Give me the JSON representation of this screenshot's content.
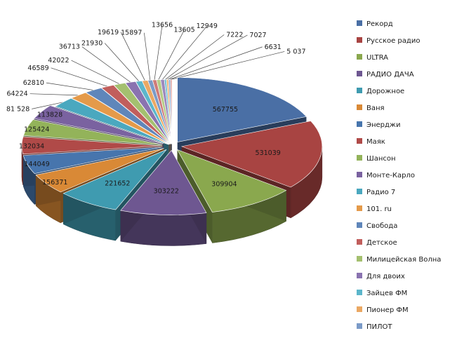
{
  "chart_data": {
    "type": "pie",
    "style": "3d-exploded",
    "legend_position": "right",
    "title": "",
    "slices": [
      {
        "name": "Рекорд",
        "value": 567755,
        "label": "567755",
        "color": "#4a6fa5"
      },
      {
        "name": "Русское радио",
        "value": 531039,
        "label": "531039",
        "color": "#a84442"
      },
      {
        "name": "ULTRA",
        "value": 309904,
        "label": "309904",
        "color": "#8aa84e"
      },
      {
        "name": "РАДИО ДАЧА",
        "value": 303222,
        "label": "303222",
        "color": "#6e5791"
      },
      {
        "name": "Дорожное",
        "value": 221652,
        "label": "221652",
        "color": "#3f9bb0"
      },
      {
        "name": "Ваня",
        "value": 156371,
        "label": "156371",
        "color": "#d98936"
      },
      {
        "name": "Энерджи",
        "value": 144049,
        "label": "144049",
        "color": "#4775ad"
      },
      {
        "name": "Маяк",
        "value": 132034,
        "label": "132034",
        "color": "#b04a48"
      },
      {
        "name": "Шансон",
        "value": 125424,
        "label": "125424",
        "color": "#93b35a"
      },
      {
        "name": "Монте-Карло",
        "value": 113828,
        "label": "113828",
        "color": "#7a62a0"
      },
      {
        "name": "Радио 7",
        "value": 81528,
        "label": "81 528",
        "color": "#4aa8bf"
      },
      {
        "name": "101. ru",
        "value": 64224,
        "label": "64224",
        "color": "#e49a4a"
      },
      {
        "name": "Свобода",
        "value": 62810,
        "label": "62810",
        "color": "#5f86ba"
      },
      {
        "name": "Детское",
        "value": 46589,
        "label": "46589",
        "color": "#c15e5c"
      },
      {
        "name": "Милицейская Волна",
        "value": 42022,
        "label": "42022",
        "color": "#a4c06f"
      },
      {
        "name": "Для двоих",
        "value": 36713,
        "label": "36713",
        "color": "#8a73b0"
      },
      {
        "name": "Зайцев ФМ",
        "value": 21930,
        "label": "21930",
        "color": "#5cb6cb"
      },
      {
        "name": "Пионер ФМ",
        "value": 19619,
        "label": "19619",
        "color": "#eba863"
      },
      {
        "name": "ПИЛОТ",
        "value": 15897,
        "label": "15897",
        "color": "#7b9bc8"
      },
      {
        "name": "",
        "value": 13656,
        "label": "13656",
        "color": "#cf7b79"
      },
      {
        "name": "",
        "value": 13605,
        "label": "13605",
        "color": "#b5cc86"
      },
      {
        "name": "",
        "value": 12949,
        "label": "12949",
        "color": "#9d89bd"
      },
      {
        "name": "",
        "value": 7222,
        "label": "7222",
        "color": "#75c2d4"
      },
      {
        "name": "",
        "value": 7027,
        "label": "7027",
        "color": "#f0b67c"
      },
      {
        "name": "",
        "value": 6631,
        "label": "6631",
        "color": "#93add3"
      },
      {
        "name": "",
        "value": 5037,
        "label": "5 037",
        "color": "#d99593"
      }
    ]
  }
}
